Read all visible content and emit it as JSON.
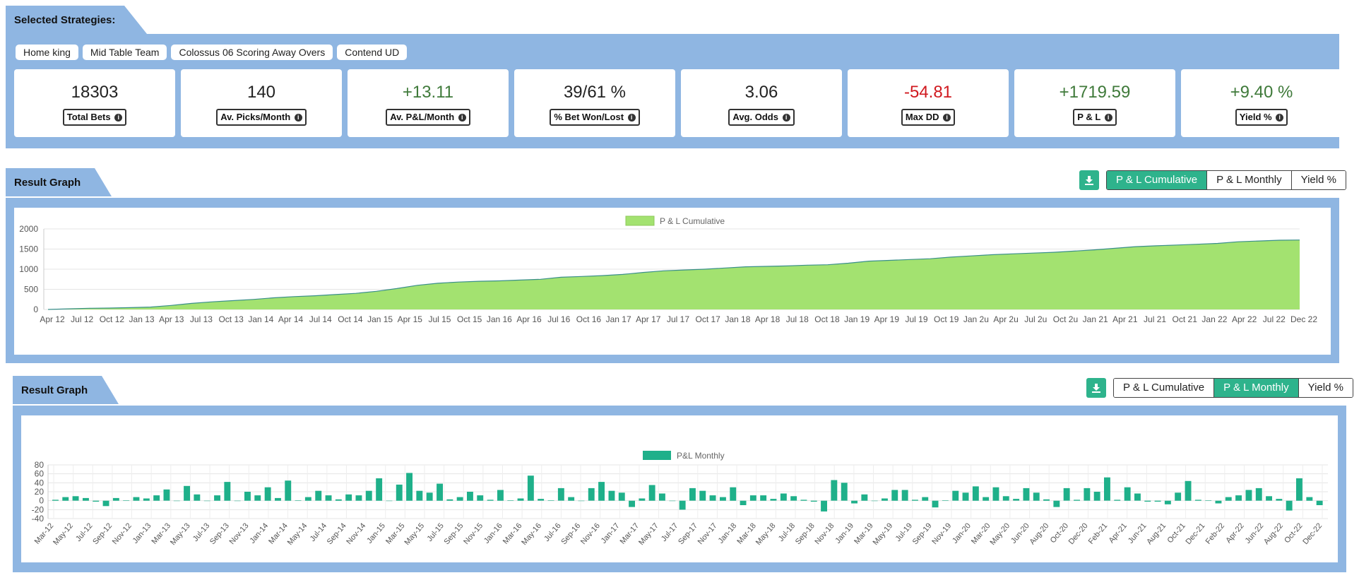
{
  "strategies": {
    "title": "Selected Strategies:",
    "chips": [
      "Home king",
      "Mid Table Team",
      "Colossus 06 Scoring Away Overs",
      "Contend UD"
    ]
  },
  "stats": [
    {
      "value": "18303",
      "label": "Total Bets",
      "tone": "neutral"
    },
    {
      "value": "140",
      "label": "Av. Picks/Month",
      "tone": "neutral"
    },
    {
      "value": "+13.11",
      "label": "Av. P&L/Month",
      "tone": "pos"
    },
    {
      "value": "39/61 %",
      "label": "% Bet Won/Lost",
      "tone": "neutral"
    },
    {
      "value": "3.06",
      "label": "Avg. Odds",
      "tone": "neutral"
    },
    {
      "value": "-54.81",
      "label": "Max DD",
      "tone": "neg"
    },
    {
      "value": "+1719.59",
      "label": "P & L",
      "tone": "pos"
    },
    {
      "value": "+9.40 %",
      "label": "Yield %",
      "tone": "pos"
    }
  ],
  "graph1": {
    "title": "Result Graph",
    "buttons": [
      "P & L Cumulative",
      "P & L Monthly",
      "Yield %"
    ],
    "active": 0
  },
  "graph2": {
    "title": "Result Graph",
    "buttons": [
      "P & L Cumulative",
      "P & L Monthly",
      "Yield %"
    ],
    "active": 1
  },
  "colors": {
    "panel": "#8fb6e2",
    "accent": "#2eb38c",
    "area_fill": "#a3e270",
    "area_line": "#3a8f8a",
    "bar": "#1fb08a",
    "positive": "#3f7a3a",
    "negative": "#d0191f"
  },
  "icons": {
    "info": "info-icon",
    "download": "download-icon"
  },
  "chart_data": [
    {
      "type": "area",
      "legend": "P & L Cumulative",
      "legend_position": "top-center",
      "ylim": [
        0,
        2000
      ],
      "yticks": [
        0,
        500,
        1000,
        1500,
        2000
      ],
      "grid": true,
      "xticks": [
        "Apr 12",
        "Jul 12",
        "Oct 12",
        "Jan 13",
        "Apr 13",
        "Jul 13",
        "Oct 13",
        "Jan 14",
        "Apr 14",
        "Jul 14",
        "Oct 14",
        "Jan 15",
        "Apr 15",
        "Jul 15",
        "Oct 15",
        "Jan 16",
        "Apr 16",
        "Jul 16",
        "Oct 16",
        "Jan 17",
        "Apr 17",
        "Jul 17",
        "Oct 17",
        "Jan 18",
        "Apr 18",
        "Jul 18",
        "Oct 18",
        "Jan 19",
        "Apr 19",
        "Jul 19",
        "Oct 19",
        "Jan 2u",
        "Apr 2u",
        "Jul 2u",
        "Oct 2u",
        "Jan 21",
        "Apr 21",
        "Jul 21",
        "Oct 21",
        "Jan 22",
        "Apr 22",
        "Jul 22",
        "Dec 22"
      ],
      "values": [
        0,
        15,
        30,
        35,
        45,
        60,
        100,
        150,
        190,
        220,
        250,
        290,
        320,
        340,
        370,
        400,
        450,
        520,
        600,
        650,
        680,
        700,
        710,
        730,
        750,
        800,
        820,
        840,
        870,
        920,
        960,
        980,
        1000,
        1030,
        1060,
        1070,
        1080,
        1100,
        1110,
        1150,
        1200,
        1220,
        1240,
        1260,
        1300,
        1330,
        1360,
        1380,
        1400,
        1420,
        1450,
        1480,
        1520,
        1560,
        1580,
        1600,
        1620,
        1640,
        1680,
        1700,
        1720,
        1725
      ]
    },
    {
      "type": "bar",
      "legend": "P&L Monthly",
      "legend_position": "top-center",
      "ylim": [
        -40,
        80
      ],
      "yticks": [
        -40,
        -20,
        0,
        20,
        40,
        60,
        80
      ],
      "grid": true,
      "xticks": [
        "Mar-12",
        "May-12",
        "Jul-12",
        "Sep-12",
        "Nov-12",
        "Jan-13",
        "Mar-13",
        "May-13",
        "Jul-13",
        "Sep-13",
        "Nov-13",
        "Jan-14",
        "Mar-14",
        "May-14",
        "Jul-14",
        "Sep-14",
        "Nov-14",
        "Jan-15",
        "Mar-15",
        "May-15",
        "Jul-15",
        "Sep-15",
        "Nov-15",
        "Jan-16",
        "Mar-16",
        "May-16",
        "Jul-16",
        "Sep-16",
        "Nov-16",
        "Jan-17",
        "Mar-17",
        "May-17",
        "Jul-17",
        "Sep-17",
        "Nov-17",
        "Jan-18",
        "Mar-18",
        "May-18",
        "Jul-18",
        "Sep-18",
        "Nov-18",
        "Jan-19",
        "Mar-19",
        "May-19",
        "Jul-19",
        "Sep-19",
        "Nov-19",
        "Jan-20",
        "Mar-20",
        "May-20",
        "Jun-20",
        "Aug-20",
        "Oct-20",
        "Dec-20",
        "Feb-21",
        "Apr-21",
        "Jun-21",
        "Aug-21",
        "Oct-21",
        "Dec-21",
        "Feb-22",
        "Apr-22",
        "Jun-22",
        "Aug-22",
        "Oct-22",
        "Dec-22"
      ],
      "values": [
        2,
        8,
        10,
        6,
        -2,
        -12,
        6,
        1,
        8,
        5,
        12,
        25,
        0,
        33,
        14,
        0,
        12,
        42,
        0,
        20,
        12,
        30,
        6,
        45,
        1,
        8,
        22,
        12,
        3,
        14,
        12,
        22,
        50,
        0,
        36,
        62,
        22,
        18,
        38,
        3,
        8,
        20,
        12,
        2,
        24,
        1,
        5,
        56,
        4,
        1,
        28,
        8,
        0,
        28,
        42,
        22,
        18,
        -14,
        5,
        35,
        16,
        0,
        -20,
        28,
        22,
        12,
        8,
        30,
        -10,
        12,
        12,
        4,
        16,
        10,
        2,
        -2,
        -24,
        46,
        40,
        -6,
        14,
        0,
        5,
        24,
        24,
        2,
        8,
        -15,
        1,
        22,
        18,
        32,
        8,
        30,
        10,
        4,
        28,
        18,
        3,
        -14,
        28,
        2,
        28,
        20,
        52,
        2,
        30,
        16,
        -2,
        -2,
        -8,
        18,
        44,
        2,
        1,
        -6,
        8,
        12,
        24,
        28,
        10,
        4,
        -22,
        50,
        8,
        -10
      ]
    }
  ]
}
